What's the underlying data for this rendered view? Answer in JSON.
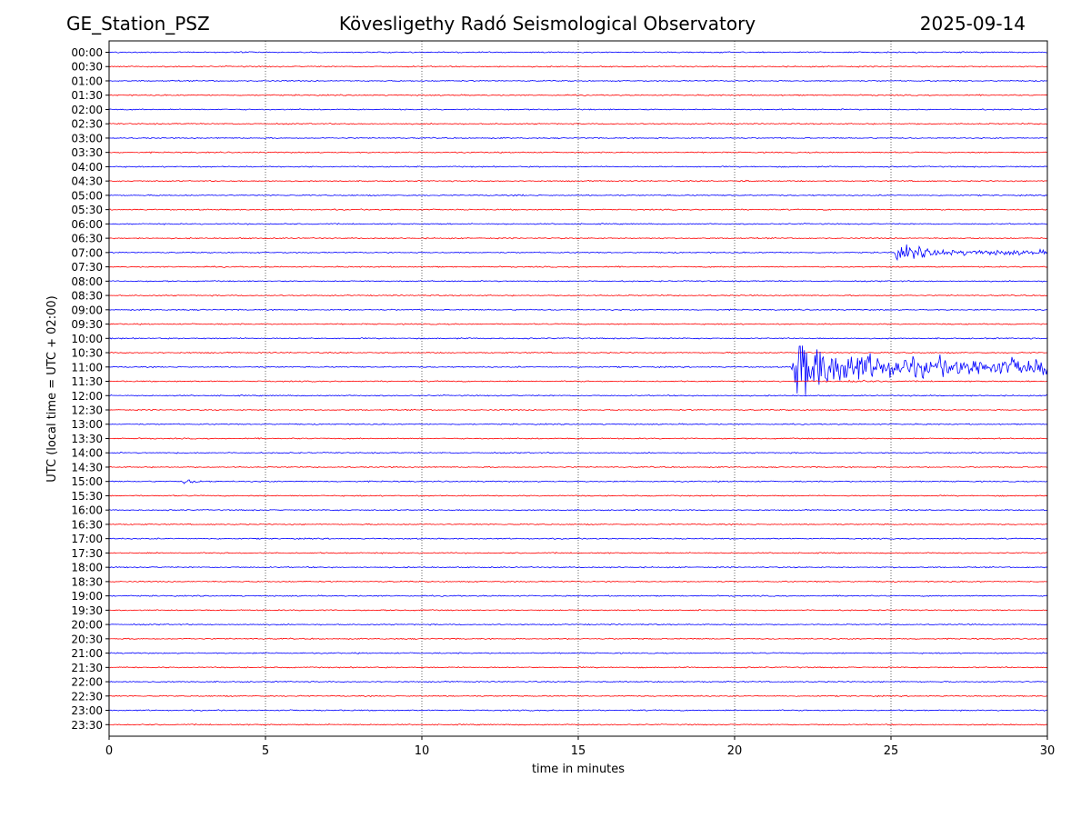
{
  "header": {
    "station": "GE_Station_PSZ",
    "observatory": "Kövesligethy Radó Seismological Observatory",
    "date": "2025-09-14"
  },
  "colors": {
    "even_trace": "#0000ff",
    "odd_trace": "#ff0000",
    "grid": "#000000"
  },
  "chart_data": {
    "type": "line",
    "subtype": "helicorder",
    "xlabel": "time in minutes",
    "ylabel": "UTC (local time = UTC + 02:00)",
    "xlim": [
      0,
      30
    ],
    "xticks": [
      0,
      5,
      10,
      15,
      20,
      25,
      30
    ],
    "vertical_grid_minutes": [
      5,
      10,
      15,
      20,
      25
    ],
    "grid_style": "dotted vertical lines",
    "rows": [
      "00:00",
      "00:30",
      "01:00",
      "01:30",
      "02:00",
      "02:30",
      "03:00",
      "03:30",
      "04:00",
      "04:30",
      "05:00",
      "05:30",
      "06:00",
      "06:30",
      "07:00",
      "07:30",
      "08:00",
      "08:30",
      "09:00",
      "09:30",
      "10:00",
      "10:30",
      "11:00",
      "11:30",
      "12:00",
      "12:30",
      "13:00",
      "13:30",
      "14:00",
      "14:30",
      "15:00",
      "15:30",
      "16:00",
      "16:30",
      "17:00",
      "17:30",
      "18:00",
      "18:30",
      "19:00",
      "19:30",
      "20:00",
      "20:30",
      "21:00",
      "21:30",
      "22:00",
      "22:30",
      "23:00",
      "23:30"
    ],
    "trace_color_pattern": "alternating blue / red, starting blue at 00:00",
    "events": [
      {
        "row": "04:30",
        "start_min": 20.1,
        "end_min": 21.5,
        "peak_amplitude_rows": 0.12
      },
      {
        "row": "05:00",
        "start_min": 13.0,
        "end_min": 13.3,
        "peak_amplitude_rows": 0.2
      },
      {
        "row": "06:00",
        "start_min": 12.6,
        "end_min": 12.8,
        "peak_amplitude_rows": 0.15
      },
      {
        "row": "07:00",
        "start_min": 25.1,
        "end_min": 30.0,
        "peak_amplitude_rows": 0.6
      },
      {
        "row": "11:00",
        "start_min": 21.8,
        "end_min": 30.0,
        "peak_amplitude_rows": 2.2
      },
      {
        "row": "11:30",
        "start_min": 23.6,
        "end_min": 25.0,
        "peak_amplitude_rows": 0.2
      },
      {
        "row": "15:00",
        "start_min": 2.3,
        "end_min": 3.4,
        "peak_amplitude_rows": 0.25
      }
    ]
  }
}
